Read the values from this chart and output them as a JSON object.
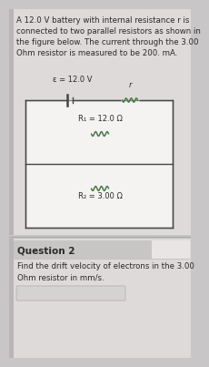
{
  "bg_color": "#c8c6c6",
  "top_panel_bg": "#dedad9",
  "bottom_panel_bg": "#dedad9",
  "circuit_box_bg": "#f5f3f2",
  "title_text": "A 12.0 V battery with internal resistance r is\nconnected to two parallel resistors as shown in\nthe figure below. The current through the 3.00\nOhm resistor is measured to be 200. mA.",
  "epsilon_label": "ε = 12.0 V",
  "r_label": "r",
  "R1_label": "R₁ = 12.0 Ω",
  "R2_label": "R₂ = 3.00 Ω",
  "question_label": "Question 2",
  "question_text": "Find the drift velocity of electrons in the 3.00\nOhm resistor in mm/s.",
  "text_color": "#2a2a2a",
  "font_size_body": 6.2,
  "font_size_labels": 6.0,
  "font_size_question_header": 7.5,
  "resistor_color": "#4a7a4a",
  "line_color": "#444444",
  "divider_color": "#999999",
  "q_header_bg": "#c8c6c5",
  "q_tab_color": "#e8e5e4",
  "ans_box_color": "#d5d3d2"
}
